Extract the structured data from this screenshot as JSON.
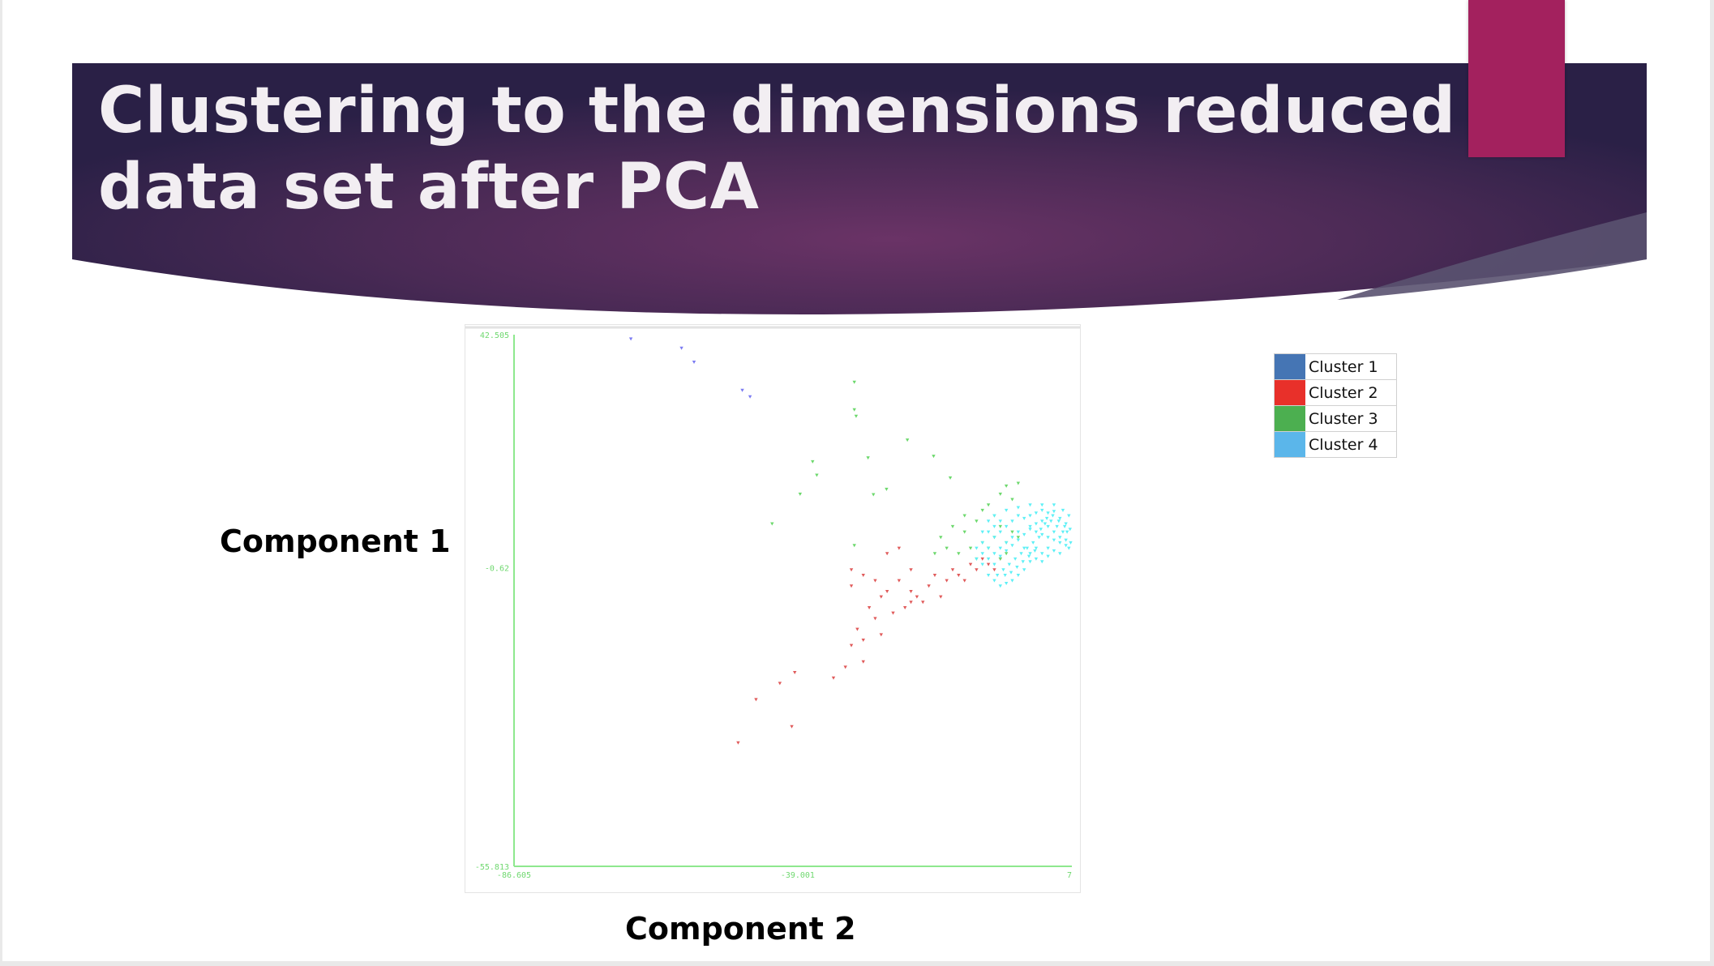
{
  "slide": {
    "title": "Clustering to the dimensions reduced data set after PCA",
    "colors": {
      "band_dark": "#2a2046",
      "band_mid": "#5e3060",
      "accent": "#a3215e",
      "title_text": "#f2eef2"
    }
  },
  "chart_data": {
    "type": "scatter",
    "xlabel": "Component 2",
    "ylabel": "Component 1",
    "xlim": [
      -86.605,
      7
    ],
    "ylim": [
      -55.813,
      42.505
    ],
    "x_ticks": [
      "-86.605",
      "-39.001",
      "7"
    ],
    "y_ticks": [
      "42.505",
      "-0.62",
      "-55.813"
    ],
    "grid": false,
    "legend_position": "right",
    "legend": [
      {
        "name": "Cluster 1",
        "color": "#4575b4"
      },
      {
        "name": "Cluster 2",
        "color": "#e8302a"
      },
      {
        "name": "Cluster 3",
        "color": "#4caf50"
      },
      {
        "name": "Cluster 4",
        "color": "#5bb6ea"
      }
    ],
    "series": [
      {
        "name": "Cluster 1",
        "color": "#7b7bf2",
        "points": [
          [
            -67,
            41.7
          ],
          [
            -58.5,
            40
          ],
          [
            -56.4,
            37.4
          ],
          [
            -48.3,
            32.2
          ],
          [
            -47,
            31
          ]
        ]
      },
      {
        "name": "Cluster 2",
        "color": "#e05a5a",
        "points": [
          [
            -49,
            -33
          ],
          [
            -40,
            -30
          ],
          [
            -46,
            -25
          ],
          [
            -42,
            -22
          ],
          [
            -39.5,
            -20
          ],
          [
            -33,
            -21
          ],
          [
            -31,
            -19
          ],
          [
            -28,
            -18
          ],
          [
            -30,
            -15
          ],
          [
            -28,
            -14
          ],
          [
            -29,
            -12
          ],
          [
            -25,
            -13
          ],
          [
            -26,
            -10
          ],
          [
            -23,
            -9
          ],
          [
            -21,
            -8
          ],
          [
            -20,
            -7
          ],
          [
            -19,
            -6
          ],
          [
            -30,
            -4
          ],
          [
            -30,
            -1
          ],
          [
            -28,
            -2
          ],
          [
            -26,
            -3
          ],
          [
            -24,
            -5
          ],
          [
            -22,
            -3
          ],
          [
            -20,
            -1
          ],
          [
            -22,
            3
          ],
          [
            -24,
            2
          ],
          [
            -17,
            -4
          ],
          [
            -16,
            -2
          ],
          [
            -15,
            -6
          ],
          [
            -14,
            -3
          ],
          [
            -13,
            -1
          ],
          [
            -12,
            -2
          ],
          [
            -11,
            -3
          ],
          [
            -10,
            0
          ],
          [
            -9,
            -1
          ],
          [
            -8,
            1
          ],
          [
            -7,
            0
          ],
          [
            -6,
            -1
          ],
          [
            -5,
            1
          ],
          [
            -18,
            -7
          ],
          [
            -20,
            -5
          ],
          [
            -25,
            -6
          ],
          [
            -27,
            -8
          ]
        ]
      },
      {
        "name": "Cluster 3",
        "color": "#6cd86c",
        "points": [
          [
            -29.5,
            33.7
          ],
          [
            -29.5,
            28.6
          ],
          [
            -29.2,
            27.4
          ],
          [
            -36.5,
            19
          ],
          [
            -35.8,
            16.5
          ],
          [
            -27.2,
            19.7
          ],
          [
            -20.6,
            23
          ],
          [
            -16.2,
            20
          ],
          [
            -13.4,
            16
          ],
          [
            -38.6,
            13
          ],
          [
            -26.3,
            12.9
          ],
          [
            -24.1,
            13.9
          ],
          [
            -43.3,
            7.5
          ],
          [
            -29.5,
            3.5
          ],
          [
            -2,
            15
          ],
          [
            -4,
            14.5
          ],
          [
            -5,
            13
          ],
          [
            -3,
            12
          ],
          [
            -7,
            11
          ],
          [
            -11,
            9
          ],
          [
            -9,
            8
          ],
          [
            -5,
            7
          ],
          [
            -3,
            6
          ],
          [
            -6,
            5
          ],
          [
            -8,
            4
          ],
          [
            -10,
            3
          ],
          [
            -12,
            2
          ],
          [
            -7,
            3
          ],
          [
            -4,
            4
          ],
          [
            -2,
            5
          ],
          [
            -15,
            5
          ],
          [
            -14,
            3
          ],
          [
            -16,
            2
          ],
          [
            -11,
            6
          ],
          [
            -13,
            7
          ],
          [
            -6,
            9
          ],
          [
            -8,
            10
          ],
          [
            -4,
            2
          ],
          [
            -9,
            1
          ],
          [
            -5,
            1
          ]
        ]
      },
      {
        "name": "Cluster 4",
        "color": "#5ef0f6",
        "points": [
          [
            0,
            7
          ],
          [
            1,
            6
          ],
          [
            2,
            5.5
          ],
          [
            3,
            5
          ],
          [
            4,
            4.5
          ],
          [
            5,
            4
          ],
          [
            6,
            3.5
          ],
          [
            6.5,
            3
          ],
          [
            5.5,
            6
          ],
          [
            4.5,
            7
          ],
          [
            3.5,
            8
          ],
          [
            2.5,
            7.5
          ],
          [
            1.5,
            5
          ],
          [
            0.5,
            4
          ],
          [
            -0.5,
            3
          ],
          [
            -1.5,
            2
          ],
          [
            -2.5,
            1
          ],
          [
            -3.5,
            0
          ],
          [
            -4.5,
            -1
          ],
          [
            -5.5,
            -2
          ],
          [
            -6,
            0
          ],
          [
            -5,
            1.5
          ],
          [
            -4,
            2.5
          ],
          [
            -3,
            3.5
          ],
          [
            -2,
            4.5
          ],
          [
            -1,
            5.5
          ],
          [
            0,
            6.5
          ],
          [
            1,
            7.5
          ],
          [
            2,
            8
          ],
          [
            3,
            7
          ],
          [
            4,
            6
          ],
          [
            5,
            5
          ],
          [
            6,
            4.5
          ],
          [
            6.8,
            4
          ],
          [
            6.2,
            6
          ],
          [
            5.8,
            7
          ],
          [
            4.8,
            8
          ],
          [
            3.8,
            9
          ],
          [
            2.8,
            8.5
          ],
          [
            1.8,
            6.5
          ],
          [
            0.8,
            2.5
          ],
          [
            -0.2,
            1.5
          ],
          [
            -1.2,
            0.5
          ],
          [
            -2.2,
            -0.5
          ],
          [
            -3.2,
            -1.5
          ],
          [
            -4.2,
            -2
          ],
          [
            -1,
            3
          ],
          [
            0,
            2
          ],
          [
            1,
            3
          ],
          [
            2,
            2
          ],
          [
            3,
            3
          ],
          [
            4,
            2.5
          ],
          [
            5,
            2
          ],
          [
            -2,
            6
          ],
          [
            -3,
            5
          ],
          [
            -4,
            4
          ],
          [
            -5,
            3
          ],
          [
            -6,
            2
          ],
          [
            -7,
            1
          ],
          [
            -7,
            3
          ],
          [
            -6,
            5
          ],
          [
            -5,
            6
          ],
          [
            -4,
            7
          ],
          [
            -3,
            8
          ],
          [
            -2,
            9
          ],
          [
            -1,
            8.5
          ],
          [
            0,
            9
          ],
          [
            1,
            9.5
          ],
          [
            2,
            10
          ],
          [
            3,
            9.5
          ],
          [
            4,
            9.8
          ],
          [
            5,
            8.5
          ],
          [
            6,
            7.5
          ],
          [
            6.7,
            6.5
          ],
          [
            -8,
            2
          ],
          [
            -8,
            4
          ],
          [
            -7,
            6
          ],
          [
            -6,
            7
          ],
          [
            -5,
            8
          ],
          [
            -1,
            -1
          ],
          [
            0,
            0.5
          ],
          [
            1,
            1
          ],
          [
            2,
            0.5
          ],
          [
            3,
            1.5
          ],
          [
            -2,
            -2
          ],
          [
            -3,
            -3
          ],
          [
            -4,
            -3.5
          ],
          [
            -5,
            -4
          ],
          [
            -6,
            -3
          ],
          [
            -7,
            -2
          ],
          [
            -8,
            0
          ],
          [
            -9,
            1
          ],
          [
            -9,
            3
          ],
          [
            -8,
            6
          ],
          [
            -7,
            8
          ],
          [
            -6,
            9
          ],
          [
            -4,
            10
          ],
          [
            -2,
            10.5
          ],
          [
            0,
            11
          ],
          [
            2,
            11
          ],
          [
            4,
            11
          ],
          [
            5.5,
            10
          ],
          [
            6.5,
            9
          ]
        ]
      }
    ]
  }
}
